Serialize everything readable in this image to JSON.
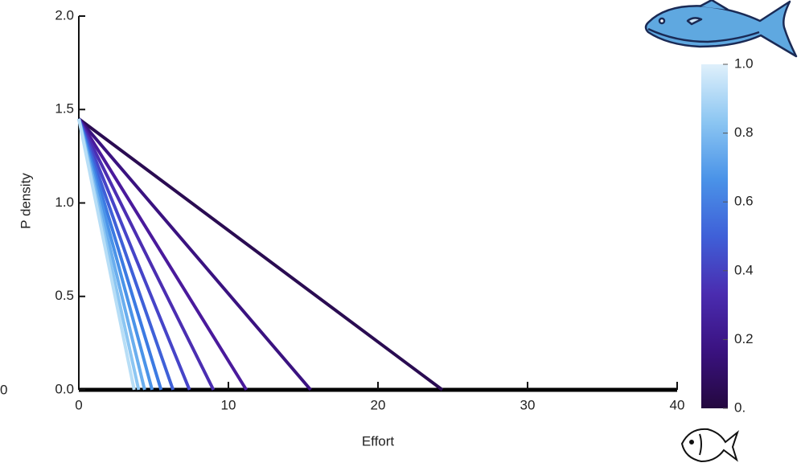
{
  "chart_data": {
    "type": "line",
    "xlabel": "Effort",
    "ylabel": "P density",
    "left_edge_text": "0",
    "xlim": [
      0,
      40
    ],
    "xticks": [
      0,
      10,
      20,
      30,
      40
    ],
    "ylim": [
      0,
      2
    ],
    "yticks": [
      {
        "value": 0,
        "label": "0.0"
      },
      0.5,
      {
        "value": 1,
        "label": "1.0"
      },
      1.5,
      {
        "value": 2,
        "label": "2.0"
      }
    ],
    "series": [
      {
        "color": "#2a0c52",
        "x": [
          0,
          24.3
        ],
        "values": [
          1.45,
          0
        ]
      },
      {
        "color": "#3a1280",
        "x": [
          0,
          15.5
        ],
        "values": [
          1.45,
          0
        ]
      },
      {
        "color": "#4a1a9c",
        "x": [
          0,
          11.2
        ],
        "values": [
          1.45,
          0
        ]
      },
      {
        "color": "#4b2eb2",
        "x": [
          0,
          9.0
        ],
        "values": [
          1.45,
          0
        ]
      },
      {
        "color": "#4644c8",
        "x": [
          0,
          7.4
        ],
        "values": [
          1.45,
          0
        ]
      },
      {
        "color": "#3f60d8",
        "x": [
          0,
          6.3
        ],
        "values": [
          1.45,
          0
        ]
      },
      {
        "color": "#3c7ae2",
        "x": [
          0,
          5.5
        ],
        "values": [
          1.45,
          0
        ]
      },
      {
        "color": "#4a93e8",
        "x": [
          0,
          4.9
        ],
        "values": [
          1.45,
          0
        ]
      },
      {
        "color": "#6aaeee",
        "x": [
          0,
          4.4
        ],
        "values": [
          1.45,
          0
        ]
      },
      {
        "color": "#8cc6f2",
        "x": [
          0,
          4.0
        ],
        "values": [
          1.45,
          0
        ]
      },
      {
        "color": "#b8def6",
        "x": [
          0,
          3.7
        ],
        "values": [
          1.45,
          0
        ]
      }
    ],
    "colorbar": {
      "lim": [
        0,
        1
      ],
      "ticks": [
        {
          "value": 0,
          "label": "0."
        },
        0.2,
        0.4,
        0.6,
        0.8,
        {
          "value": 1,
          "label": "1.0"
        }
      ],
      "colors": [
        "#24083f",
        "#3a1280",
        "#4a2cb0",
        "#3f60d8",
        "#4a93e8",
        "#8cc6f2",
        "#dff0fb"
      ]
    }
  }
}
